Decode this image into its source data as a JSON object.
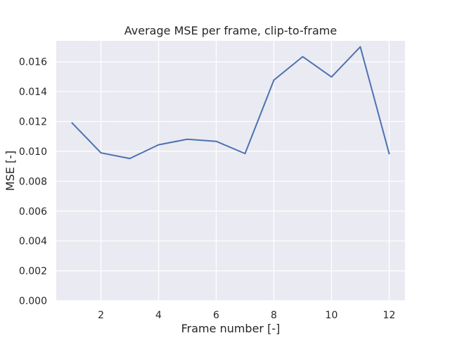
{
  "chart_data": {
    "type": "line",
    "title": "Average MSE per frame, clip-to-frame",
    "xlabel": "Frame number [-]",
    "ylabel": "MSE [-]",
    "xlim": [
      0.45,
      12.55
    ],
    "ylim": [
      0.0,
      0.0174
    ],
    "xticks": [
      2,
      4,
      6,
      8,
      10,
      12
    ],
    "xtick_labels": [
      "2",
      "4",
      "6",
      "8",
      "10",
      "12"
    ],
    "yticks": [
      0.0,
      0.002,
      0.004,
      0.006,
      0.008,
      0.01,
      0.012,
      0.014,
      0.016
    ],
    "ytick_labels": [
      "0.000",
      "0.002",
      "0.004",
      "0.006",
      "0.008",
      "0.010",
      "0.012",
      "0.014",
      "0.016"
    ],
    "grid": true,
    "legend": "none",
    "colors": {
      "plot_background": "#eaeaf2",
      "grid": "#ffffff",
      "line": "#4c72b0",
      "text": "#262626"
    },
    "series": [
      {
        "x": [
          1,
          2,
          3,
          4,
          5,
          6,
          7,
          8,
          9,
          10,
          11,
          12
        ],
        "values": [
          0.0119,
          0.0099,
          0.00952,
          0.01044,
          0.01081,
          0.01067,
          0.00985,
          0.01477,
          0.01634,
          0.01498,
          0.017,
          0.00985
        ]
      }
    ]
  }
}
